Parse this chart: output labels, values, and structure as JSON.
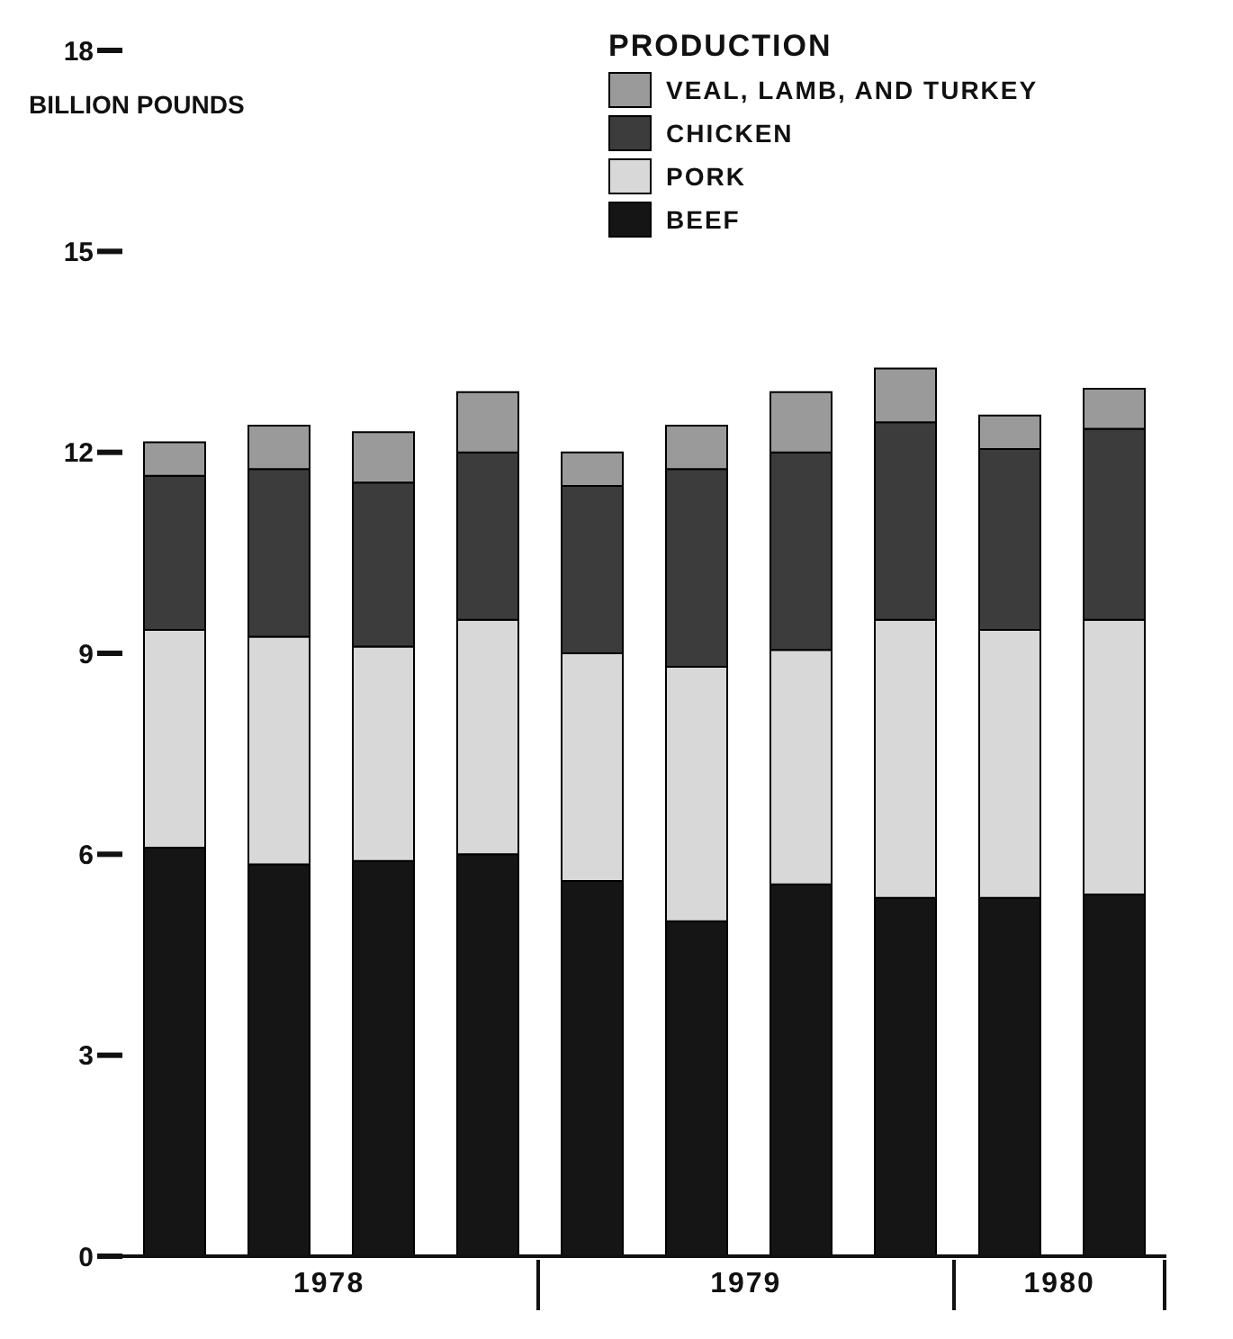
{
  "chart_data": {
    "type": "bar",
    "stacked": true,
    "ylabel": "BILLION POUNDS",
    "legend_title": "PRODUCTION",
    "legend": "top",
    "categories": [
      null,
      null,
      null,
      null,
      null,
      null,
      null,
      null,
      null,
      null
    ],
    "ylim": [
      0,
      18
    ],
    "yticks": [
      0,
      3,
      6,
      9,
      12,
      15,
      18
    ],
    "series": [
      {
        "name": "BEEF",
        "color": "#151515",
        "values": [
          6.1,
          5.85,
          5.9,
          6.0,
          5.6,
          5.0,
          5.55,
          5.35,
          5.35,
          5.4
        ]
      },
      {
        "name": "PORK",
        "color": "#d8d8d8",
        "values": [
          3.25,
          3.4,
          3.2,
          3.5,
          3.4,
          3.8,
          3.5,
          4.15,
          4.0,
          4.1
        ]
      },
      {
        "name": "CHICKEN",
        "color": "#3c3c3c",
        "values": [
          2.3,
          2.5,
          2.45,
          2.5,
          2.5,
          2.95,
          2.95,
          2.95,
          2.7,
          2.85
        ]
      },
      {
        "name": "VEAL, LAMB, AND TURKEY",
        "color": "#9a9a9a",
        "values": [
          0.5,
          0.65,
          0.75,
          0.9,
          0.5,
          0.65,
          0.9,
          0.8,
          0.5,
          0.6
        ]
      }
    ],
    "annotations": [
      "1978",
      "1979",
      "1980"
    ]
  }
}
